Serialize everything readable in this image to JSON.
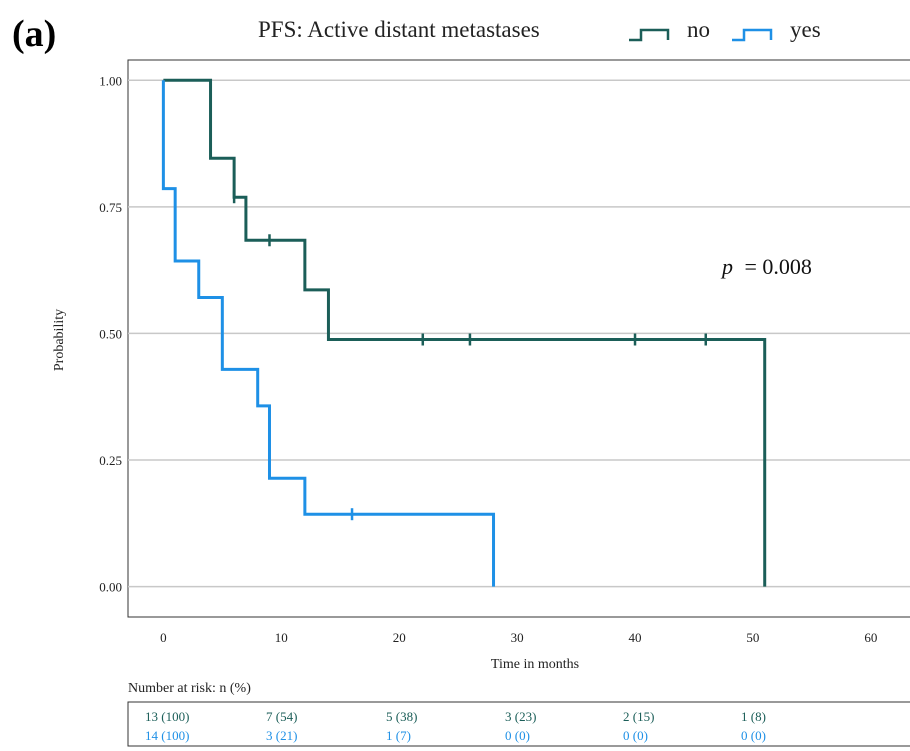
{
  "panel_label": "(a)",
  "legend": {
    "title": "PFS: Active distant metastases",
    "entries": [
      {
        "label": "no",
        "color": "#1b5e58"
      },
      {
        "label": "yes",
        "color": "#1e90e6"
      }
    ]
  },
  "annotation": {
    "p_symbol": "p",
    "p_text": "= 0.008"
  },
  "risk_table": {
    "title": "Number at risk: n (%)",
    "rows": [
      {
        "color": "#1b5e58",
        "cells": [
          "13 (100)",
          "7 (54)",
          "5 (38)",
          "3 (23)",
          "2 (15)",
          "1 (8)"
        ]
      },
      {
        "color": "#1e90e6",
        "cells": [
          "14 (100)",
          "3 (21)",
          "1 (7)",
          "0 (0)",
          "0 (0)",
          "0 (0)"
        ]
      }
    ]
  },
  "chart_data": {
    "type": "line",
    "step": true,
    "xlabel": "Time in months",
    "ylabel": "Probability",
    "xlim": [
      -3,
      64
    ],
    "ylim": [
      -0.06,
      1.04
    ],
    "xticks": [
      0,
      10,
      20,
      30,
      40,
      50,
      60
    ],
    "yticks": [
      0.0,
      0.25,
      0.5,
      0.75,
      1.0
    ],
    "ytick_labels": [
      "0.00",
      "0.25",
      "0.50",
      "0.75",
      "1.00"
    ],
    "grid": {
      "y": true,
      "x": false
    },
    "legend_position": "top",
    "series": [
      {
        "name": "no",
        "color": "#1b5e58",
        "points": [
          [
            0,
            1.0
          ],
          [
            4,
            0.846
          ],
          [
            6,
            0.769
          ],
          [
            7,
            0.684
          ],
          [
            12,
            0.586
          ],
          [
            14,
            0.488
          ],
          [
            51,
            0.0
          ]
        ],
        "end": 51,
        "censored": [
          [
            6,
            0.769
          ],
          [
            9,
            0.684
          ],
          [
            22,
            0.488
          ],
          [
            26,
            0.488
          ],
          [
            40,
            0.488
          ],
          [
            46,
            0.488
          ]
        ]
      },
      {
        "name": "yes",
        "color": "#1e90e6",
        "points": [
          [
            0,
            1.0
          ],
          [
            0,
            0.786
          ],
          [
            1,
            0.643
          ],
          [
            3,
            0.571
          ],
          [
            5,
            0.429
          ],
          [
            8,
            0.357
          ],
          [
            9,
            0.214
          ],
          [
            12,
            0.143
          ],
          [
            28,
            0.0
          ]
        ],
        "end": 28,
        "censored": [
          [
            16,
            0.143
          ]
        ]
      }
    ]
  }
}
